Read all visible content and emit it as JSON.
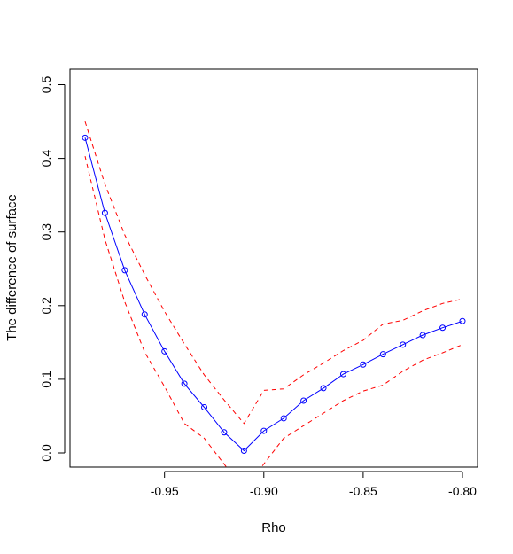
{
  "chart_data": {
    "type": "line",
    "title": "",
    "xlabel": "Rho",
    "ylabel": "The difference of surface",
    "xlim": [
      -0.99,
      -0.8
    ],
    "ylim": [
      0.0,
      0.5
    ],
    "x_ticks": [
      -0.95,
      -0.9,
      -0.85,
      -0.8
    ],
    "x_tick_labels": [
      "-0.95",
      "-0.90",
      "-0.85",
      "-0.80"
    ],
    "y_ticks": [
      0.0,
      0.1,
      0.2,
      0.3,
      0.4,
      0.5
    ],
    "y_tick_labels": [
      "0.0",
      "0.1",
      "0.2",
      "0.3",
      "0.4",
      "0.5"
    ],
    "grid": false,
    "legend": "none",
    "series": [
      {
        "style": "solid-with-circles",
        "color": "#0000ff",
        "x": [
          -0.99,
          -0.98,
          -0.97,
          -0.96,
          -0.95,
          -0.94,
          -0.93,
          -0.92,
          -0.91,
          -0.9,
          -0.89,
          -0.88,
          -0.87,
          -0.86,
          -0.85,
          -0.84,
          -0.83,
          -0.82,
          -0.81,
          -0.8
        ],
        "y": [
          0.428,
          0.326,
          0.248,
          0.188,
          0.138,
          0.094,
          0.062,
          0.028,
          0.003,
          0.03,
          0.047,
          0.071,
          0.088,
          0.107,
          0.12,
          0.134,
          0.147,
          0.16,
          0.17,
          0.179
        ]
      },
      {
        "style": "dashed",
        "color": "#ff0000",
        "x": [
          -0.99,
          -0.98,
          -0.97,
          -0.96,
          -0.95,
          -0.94,
          -0.93,
          -0.92,
          -0.91,
          -0.9,
          -0.89,
          -0.88,
          -0.87,
          -0.86,
          -0.85,
          -0.84,
          -0.83,
          -0.82,
          -0.81,
          -0.8
        ],
        "y": [
          0.45,
          0.365,
          0.296,
          0.242,
          0.192,
          0.148,
          0.106,
          0.072,
          0.04,
          0.085,
          0.087,
          0.106,
          0.122,
          0.139,
          0.153,
          0.175,
          0.18,
          0.193,
          0.203,
          0.209
        ]
      },
      {
        "style": "dashed",
        "color": "#ff0000",
        "x": [
          -0.99,
          -0.98,
          -0.97,
          -0.96,
          -0.95,
          -0.94,
          -0.93,
          -0.92,
          -0.91,
          -0.9,
          -0.89,
          -0.88,
          -0.87,
          -0.86,
          -0.85,
          -0.84,
          -0.83,
          -0.82,
          -0.81,
          -0.8
        ],
        "y": [
          0.403,
          0.29,
          0.205,
          0.137,
          0.09,
          0.04,
          0.02,
          -0.015,
          -0.05,
          -0.015,
          0.02,
          0.037,
          0.054,
          0.071,
          0.084,
          0.092,
          0.111,
          0.126,
          0.136,
          0.147
        ]
      }
    ]
  }
}
